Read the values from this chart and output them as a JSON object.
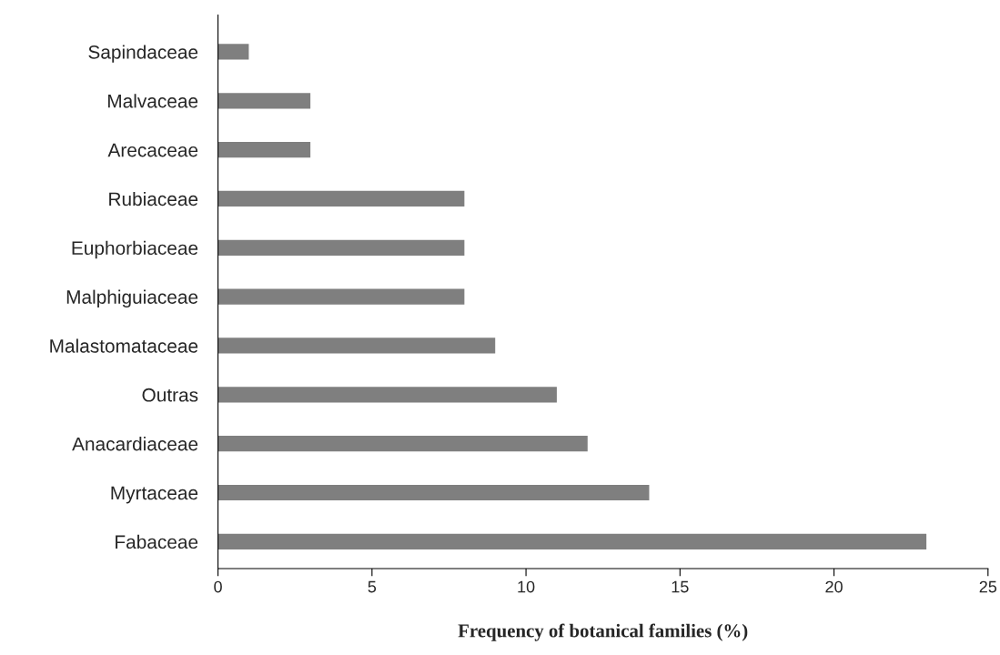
{
  "chart_data": {
    "type": "bar",
    "orientation": "horizontal",
    "xlabel": "Frequency of botanical families (%)",
    "categories": [
      "Sapindaceae",
      "Malvaceae",
      "Arecaceae",
      "Rubiaceae",
      "Euphorbiaceae",
      "Malphiguiaceae",
      "Malastomataceae",
      "Outras",
      "Anacardiaceae",
      "Myrtaceae",
      "Fabaceae"
    ],
    "values": [
      1,
      3,
      3,
      8,
      8,
      8,
      9,
      11,
      12,
      14,
      23
    ],
    "color": "#7f7f7f",
    "xlim": [
      0,
      25
    ],
    "xticks": [
      0,
      5,
      10,
      15,
      20,
      25
    ],
    "grid": false,
    "legend": false
  }
}
